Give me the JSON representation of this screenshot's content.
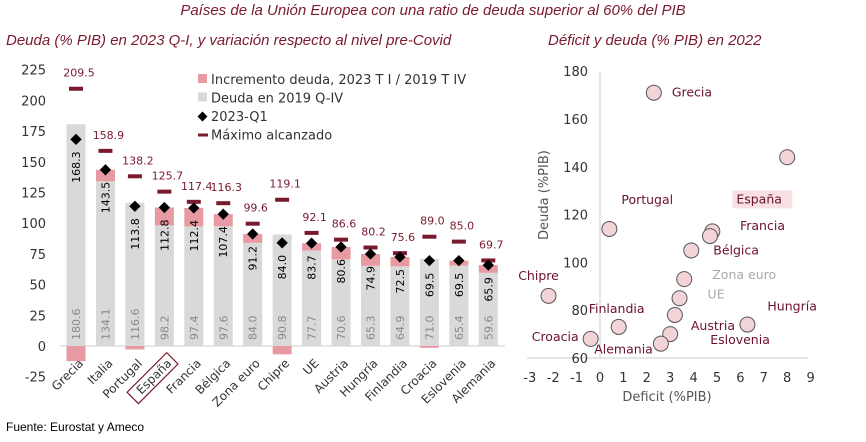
{
  "title": "Países de la Unión Europea con una ratio de deuda superior al 60% del PIB",
  "source": "Fuente: Eurostat y Ameco",
  "colors": {
    "increment": "#e89aa2",
    "base": "#d9d9d9",
    "marker": "#000000",
    "max": "#7a1a2e",
    "scatter_fill": "#f2d3d7",
    "label": "#6b1030"
  },
  "chart_data": [
    {
      "type": "bar",
      "title": "Deuda (% PIB) en 2023 Q-I, y variación respecto al nivel pre-Covid",
      "categories": [
        "Grecia",
        "Italia",
        "Portugal",
        "España",
        "Francia",
        "Bélgica",
        "Zona euro",
        "Chipre",
        "UE",
        "Austria",
        "Hungría",
        "Finlandia",
        "Croacia",
        "Eslovenia",
        "Alemania"
      ],
      "highlight": "España",
      "ylim": [
        -25,
        225
      ],
      "yticks": [
        -25,
        0,
        25,
        50,
        75,
        100,
        125,
        150,
        175,
        200,
        225
      ],
      "legend": [
        "Incremento deuda, 2023 T I / 2019 T IV",
        "Deuda en 2019 Q-IV",
        "2023-Q1",
        "Máximo alcanzado"
      ],
      "legend_position": "top-right",
      "series": [
        {
          "name": "Deuda en 2019 Q-IV",
          "values": [
            180.6,
            134.1,
            116.6,
            98.2,
            97.4,
            97.6,
            84.0,
            90.8,
            77.7,
            70.6,
            65.3,
            64.9,
            71.0,
            65.4,
            59.6
          ]
        },
        {
          "name": "2023-Q1",
          "values": [
            168.3,
            143.5,
            113.8,
            112.8,
            112.4,
            107.4,
            91.2,
            84.0,
            83.7,
            80.6,
            74.9,
            72.5,
            69.5,
            69.5,
            65.9
          ]
        },
        {
          "name": "Máximo alcanzado",
          "values": [
            209.5,
            158.9,
            138.2,
            125.7,
            117.4,
            116.3,
            99.6,
            119.1,
            92.1,
            86.6,
            80.2,
            75.6,
            89.0,
            85.0,
            69.7
          ]
        }
      ],
      "labels_2019": [
        "180.6",
        "134.1",
        "116.6",
        "98.2",
        "97.4",
        "97.6",
        "84.0",
        "90.8",
        "77.7",
        "70.6",
        "65.3",
        "64.9",
        "71.0",
        "65.4",
        "59.6"
      ],
      "labels_2023": [
        "168.3",
        "143.5",
        "113.8",
        "112.8",
        "112.4",
        "107.4",
        "91.2",
        "84.0",
        "83.7",
        "80.6",
        "74.9",
        "72.5",
        "69.5",
        "69.5",
        "65.9"
      ],
      "labels_max": [
        "209.5",
        "158.9",
        "138.2",
        "125.7",
        "117.4",
        "116.3",
        "99.6",
        "119.1",
        "92.1",
        "86.6",
        "80.2",
        "75.6",
        "89.0",
        "85.0",
        "69.7"
      ]
    },
    {
      "type": "scatter",
      "title": "Déficit y deuda (% PIB) en 2022",
      "xlabel": "Deficit (%PIB)",
      "ylabel": "Deuda (%PIB)",
      "xlim": [
        -3,
        9
      ],
      "ylim": [
        60,
        180
      ],
      "xticks": [
        "-3",
        "-2",
        "-1",
        "0",
        "1",
        "2",
        "3",
        "4",
        "5",
        "6",
        "7",
        "8",
        "9"
      ],
      "yticks": [
        "60",
        "80",
        "100",
        "120",
        "140",
        "160",
        "180"
      ],
      "points": [
        {
          "label": "Grecia",
          "x": 2.3,
          "y": 171
        },
        {
          "label": "",
          "x": 8.0,
          "y": 144
        },
        {
          "label": "Portugal",
          "x": 0.4,
          "y": 114
        },
        {
          "label": "España",
          "x": 4.8,
          "y": 113
        },
        {
          "label": "Francia",
          "x": 4.7,
          "y": 111
        },
        {
          "label": "Bélgica",
          "x": 3.9,
          "y": 105
        },
        {
          "label": "Zona euro",
          "x": 3.6,
          "y": 93
        },
        {
          "label": "UE",
          "x": 3.4,
          "y": 85
        },
        {
          "label": "Chipre",
          "x": -2.2,
          "y": 86
        },
        {
          "label": "Finlandia",
          "x": 0.8,
          "y": 73
        },
        {
          "label": "Austria",
          "x": 3.2,
          "y": 78
        },
        {
          "label": "Hungría",
          "x": 6.3,
          "y": 74
        },
        {
          "label": "Eslovenia",
          "x": 3.0,
          "y": 70
        },
        {
          "label": "Croacia",
          "x": -0.4,
          "y": 68
        },
        {
          "label": "Alemania",
          "x": 2.6,
          "y": 66
        }
      ]
    }
  ]
}
